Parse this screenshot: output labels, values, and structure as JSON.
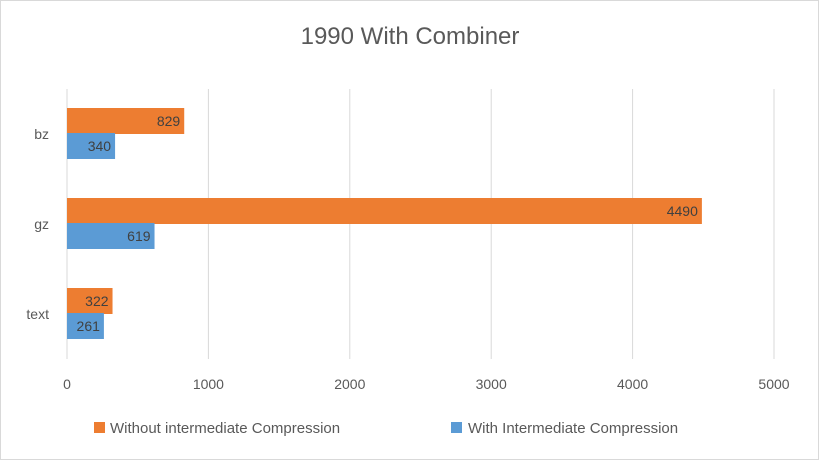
{
  "chart_data": {
    "type": "bar",
    "orientation": "horizontal",
    "title": "1990 With Combiner",
    "categories": [
      "bz",
      "gz",
      "text"
    ],
    "series": [
      {
        "name": "Without intermediate Compression",
        "color": "#ED7D31",
        "values": [
          829,
          4490,
          322
        ]
      },
      {
        "name": "With Intermediate Compression",
        "color": "#5B9BD5",
        "values": [
          340,
          619,
          261
        ]
      }
    ],
    "xlim": [
      0,
      5000
    ],
    "x_ticks": [
      0,
      1000,
      2000,
      3000,
      4000,
      5000
    ],
    "xlabel": "",
    "ylabel": "",
    "grid": "vertical",
    "legend": "bottom",
    "data_labels": true
  }
}
